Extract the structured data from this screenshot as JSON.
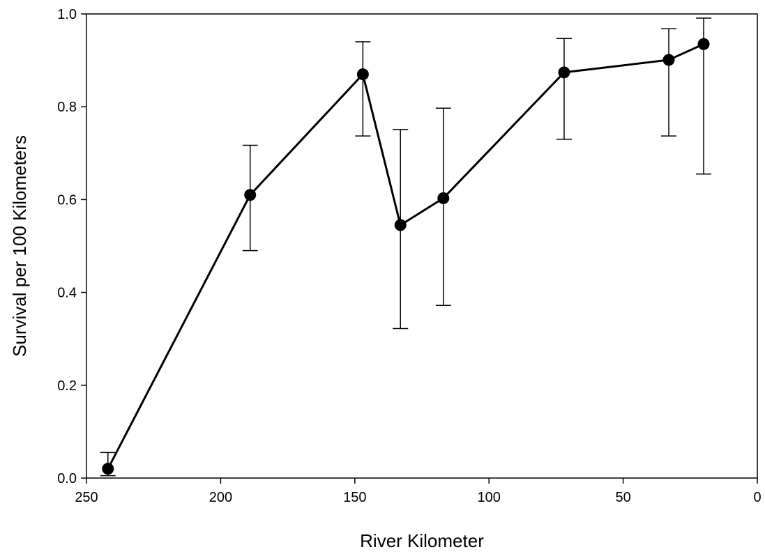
{
  "chart_data": {
    "type": "line",
    "title": "",
    "xlabel": "River Kilometer",
    "ylabel": "Survival per 100 Kilometers",
    "xlim": [
      250,
      0
    ],
    "ylim": [
      0.0,
      1.0
    ],
    "x_reversed": true,
    "grid": false,
    "legend": "none",
    "x_ticks": [
      250,
      200,
      150,
      100,
      50,
      0
    ],
    "x_tick_labels": [
      "250",
      "200",
      "150",
      "100",
      "50",
      "0"
    ],
    "y_ticks": [
      0.0,
      0.2,
      0.4,
      0.6,
      0.8,
      1.0
    ],
    "y_tick_labels": [
      "0.0",
      "0.2",
      "0.4",
      "0.6",
      "0.8",
      "1.0"
    ],
    "line_color": "#000000",
    "marker": "filled-circle",
    "error_bars": true,
    "series": [
      {
        "x": [
          242,
          189,
          147,
          133,
          117,
          72,
          33,
          20
        ],
        "y": [
          0.02,
          0.61,
          0.87,
          0.545,
          0.603,
          0.874,
          0.901,
          0.935
        ],
        "y_lower": [
          0.005,
          0.49,
          0.737,
          0.322,
          0.372,
          0.73,
          0.737,
          0.655
        ],
        "y_upper": [
          0.055,
          0.717,
          0.94,
          0.751,
          0.797,
          0.947,
          0.968,
          0.991
        ]
      }
    ]
  }
}
